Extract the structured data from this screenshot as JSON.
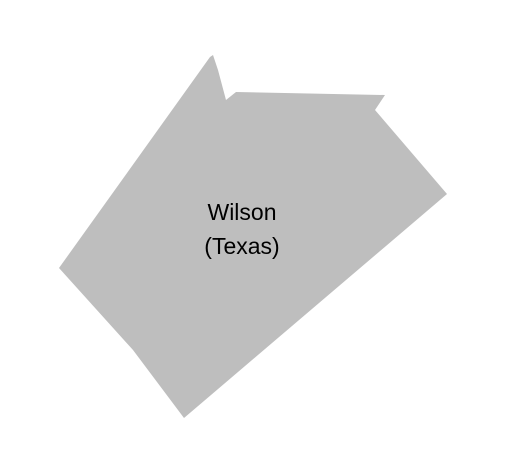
{
  "map": {
    "region": {
      "name": "Wilson",
      "state": "(Texas)",
      "fill_color": "#bebebe"
    },
    "background_color": "#ffffff",
    "text_color": "#000000"
  }
}
